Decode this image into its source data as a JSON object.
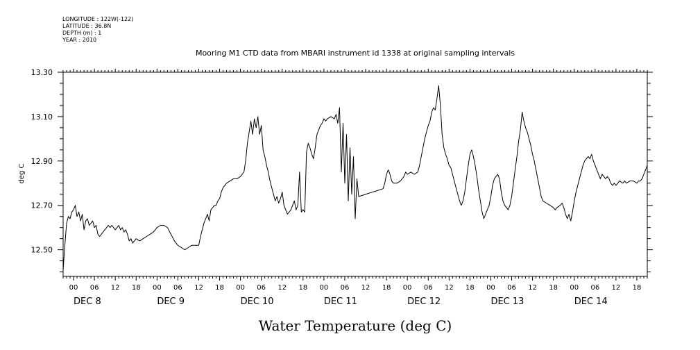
{
  "metadata": {
    "longitude": "LONGITUDE : 122W(-122)",
    "latitude": "LATITUDE : 36.8N",
    "depth": "DEPTH (m) : 1",
    "year": "YEAR : 2010"
  },
  "chart_data": {
    "type": "line",
    "title": "Mooring M1 CTD data from MBARI instrument id 1338 at original sampling intervals",
    "xlabel": "Water Temperature (deg C)",
    "ylabel": "deg C",
    "ylim": [
      12.38,
      13.3
    ],
    "xlim": [
      0,
      168
    ],
    "x_unit": "hours since DEC 7 2010 21:00",
    "yticks": [
      "12.50",
      "12.70",
      "12.90",
      "13.10",
      "13.30"
    ],
    "xtick_labels": [
      "00",
      "06",
      "12",
      "18",
      "00",
      "06",
      "12",
      "18",
      "00",
      "06",
      "12",
      "18",
      "00",
      "06",
      "12",
      "18",
      "00",
      "06",
      "12",
      "18",
      "00",
      "06",
      "12",
      "18",
      "00",
      "06",
      "12",
      "18"
    ],
    "day_labels": [
      "DEC  8",
      "DEC  9",
      "DEC 10",
      "DEC 11",
      "DEC 12",
      "DEC 13",
      "DEC 14"
    ],
    "series": [
      {
        "color": "#000000",
        "points": [
          [
            0.0,
            12.41
          ],
          [
            0.5,
            12.52
          ],
          [
            1.0,
            12.62
          ],
          [
            1.5,
            12.65
          ],
          [
            2.0,
            12.64
          ],
          [
            2.5,
            12.67
          ],
          [
            3.0,
            12.68
          ],
          [
            3.5,
            12.7
          ],
          [
            4.0,
            12.65
          ],
          [
            4.5,
            12.67
          ],
          [
            5.0,
            12.63
          ],
          [
            5.5,
            12.66
          ],
          [
            6.0,
            12.59
          ],
          [
            6.5,
            12.63
          ],
          [
            7.0,
            12.64
          ],
          [
            7.5,
            12.61
          ],
          [
            8.0,
            12.62
          ],
          [
            8.5,
            12.63
          ],
          [
            9.0,
            12.6
          ],
          [
            9.5,
            12.61
          ],
          [
            10.0,
            12.57
          ],
          [
            10.5,
            12.56
          ],
          [
            11.0,
            12.57
          ],
          [
            11.5,
            12.58
          ],
          [
            12.0,
            12.59
          ],
          [
            12.5,
            12.6
          ],
          [
            13.0,
            12.61
          ],
          [
            13.5,
            12.6
          ],
          [
            14.0,
            12.61
          ],
          [
            14.5,
            12.6
          ],
          [
            15.0,
            12.59
          ],
          [
            15.5,
            12.6
          ],
          [
            16.0,
            12.61
          ],
          [
            16.5,
            12.59
          ],
          [
            17.0,
            12.6
          ],
          [
            17.5,
            12.58
          ],
          [
            18.0,
            12.59
          ],
          [
            18.5,
            12.57
          ],
          [
            19.0,
            12.54
          ],
          [
            19.5,
            12.55
          ],
          [
            20.0,
            12.53
          ],
          [
            20.5,
            12.54
          ],
          [
            21.0,
            12.55
          ],
          [
            22.0,
            12.54
          ],
          [
            23.0,
            12.55
          ],
          [
            24.0,
            12.56
          ],
          [
            25.0,
            12.57
          ],
          [
            26.0,
            12.58
          ],
          [
            27.0,
            12.6
          ],
          [
            28.0,
            12.61
          ],
          [
            29.0,
            12.61
          ],
          [
            30.0,
            12.6
          ],
          [
            31.0,
            12.57
          ],
          [
            32.0,
            12.54
          ],
          [
            33.0,
            12.52
          ],
          [
            34.0,
            12.51
          ],
          [
            35.0,
            12.5
          ],
          [
            36.0,
            12.51
          ],
          [
            37.0,
            12.52
          ],
          [
            38.0,
            12.52
          ],
          [
            39.0,
            12.52
          ],
          [
            39.5,
            12.56
          ],
          [
            40.0,
            12.59
          ],
          [
            40.5,
            12.62
          ],
          [
            41.0,
            12.64
          ],
          [
            41.5,
            12.66
          ],
          [
            42.0,
            12.63
          ],
          [
            42.5,
            12.68
          ],
          [
            43.0,
            12.69
          ],
          [
            43.5,
            12.7
          ],
          [
            44.0,
            12.7
          ],
          [
            44.5,
            12.72
          ],
          [
            45.0,
            12.73
          ],
          [
            45.5,
            12.76
          ],
          [
            46.0,
            12.78
          ],
          [
            46.5,
            12.79
          ],
          [
            47.0,
            12.8
          ],
          [
            48.0,
            12.81
          ],
          [
            49.0,
            12.82
          ],
          [
            50.0,
            12.82
          ],
          [
            51.0,
            12.83
          ],
          [
            51.5,
            12.84
          ],
          [
            52.0,
            12.85
          ],
          [
            52.5,
            12.9
          ],
          [
            53.0,
            12.98
          ],
          [
            53.5,
            13.03
          ],
          [
            54.0,
            13.08
          ],
          [
            54.5,
            13.02
          ],
          [
            55.0,
            13.09
          ],
          [
            55.5,
            13.05
          ],
          [
            56.0,
            13.1
          ],
          [
            56.5,
            13.02
          ],
          [
            57.0,
            13.06
          ],
          [
            57.5,
            12.95
          ],
          [
            58.0,
            12.92
          ],
          [
            58.5,
            12.88
          ],
          [
            59.0,
            12.85
          ],
          [
            59.5,
            12.81
          ],
          [
            60.0,
            12.78
          ],
          [
            60.5,
            12.75
          ],
          [
            61.0,
            12.72
          ],
          [
            61.5,
            12.74
          ],
          [
            62.0,
            12.71
          ],
          [
            62.5,
            12.73
          ],
          [
            63.0,
            12.76
          ],
          [
            63.5,
            12.7
          ],
          [
            64.0,
            12.68
          ],
          [
            64.5,
            12.66
          ],
          [
            65.0,
            12.67
          ],
          [
            65.5,
            12.68
          ],
          [
            66.0,
            12.7
          ],
          [
            66.5,
            12.72
          ],
          [
            67.0,
            12.68
          ],
          [
            67.5,
            12.7
          ],
          [
            68.0,
            12.85
          ],
          [
            68.5,
            12.67
          ],
          [
            69.0,
            12.68
          ],
          [
            69.5,
            12.67
          ],
          [
            70.0,
            12.94
          ],
          [
            70.5,
            12.98
          ],
          [
            71.0,
            12.96
          ],
          [
            71.5,
            12.93
          ],
          [
            72.0,
            12.91
          ],
          [
            72.5,
            12.96
          ],
          [
            73.0,
            13.02
          ],
          [
            73.5,
            13.04
          ],
          [
            74.0,
            13.06
          ],
          [
            74.5,
            13.07
          ],
          [
            75.0,
            13.09
          ],
          [
            75.5,
            13.08
          ],
          [
            76.0,
            13.09
          ],
          [
            77.0,
            13.1
          ],
          [
            78.0,
            13.09
          ],
          [
            78.5,
            13.11
          ],
          [
            79.0,
            13.07
          ],
          [
            79.5,
            13.14
          ],
          [
            80.0,
            12.85
          ],
          [
            80.5,
            13.07
          ],
          [
            81.0,
            12.8
          ],
          [
            81.5,
            13.02
          ],
          [
            82.0,
            12.72
          ],
          [
            82.5,
            12.96
          ],
          [
            83.0,
            12.75
          ],
          [
            83.5,
            12.92
          ],
          [
            84.0,
            12.64
          ],
          [
            84.5,
            12.82
          ],
          [
            85.0,
            12.74
          ],
          [
            86.0,
            12.745
          ],
          [
            88.0,
            12.755
          ],
          [
            90.0,
            12.765
          ],
          [
            92.0,
            12.775
          ],
          [
            92.5,
            12.8
          ],
          [
            93.0,
            12.84
          ],
          [
            93.5,
            12.86
          ],
          [
            94.0,
            12.84
          ],
          [
            94.5,
            12.81
          ],
          [
            95.0,
            12.8
          ],
          [
            96.0,
            12.8
          ],
          [
            97.0,
            12.81
          ],
          [
            98.0,
            12.83
          ],
          [
            98.5,
            12.85
          ],
          [
            99.0,
            12.84
          ],
          [
            100.0,
            12.85
          ],
          [
            101.0,
            12.84
          ],
          [
            102.0,
            12.85
          ],
          [
            102.5,
            12.88
          ],
          [
            103.0,
            12.92
          ],
          [
            103.5,
            12.96
          ],
          [
            104.0,
            13.0
          ],
          [
            104.5,
            13.03
          ],
          [
            105.0,
            13.06
          ],
          [
            105.5,
            13.08
          ],
          [
            106.0,
            13.12
          ],
          [
            106.5,
            13.14
          ],
          [
            107.0,
            13.13
          ],
          [
            107.5,
            13.18
          ],
          [
            108.0,
            13.24
          ],
          [
            108.5,
            13.15
          ],
          [
            109.0,
            13.02
          ],
          [
            109.5,
            12.96
          ],
          [
            110.0,
            12.93
          ],
          [
            110.5,
            12.91
          ],
          [
            111.0,
            12.88
          ],
          [
            111.5,
            12.87
          ],
          [
            112.0,
            12.84
          ],
          [
            112.5,
            12.81
          ],
          [
            113.0,
            12.78
          ],
          [
            113.5,
            12.75
          ],
          [
            114.0,
            12.72
          ],
          [
            114.5,
            12.7
          ],
          [
            115.0,
            12.72
          ],
          [
            115.5,
            12.76
          ],
          [
            116.0,
            12.82
          ],
          [
            116.5,
            12.88
          ],
          [
            117.0,
            12.93
          ],
          [
            117.5,
            12.95
          ],
          [
            118.0,
            12.92
          ],
          [
            118.5,
            12.88
          ],
          [
            119.0,
            12.83
          ],
          [
            119.5,
            12.77
          ],
          [
            120.0,
            12.72
          ],
          [
            120.5,
            12.67
          ],
          [
            121.0,
            12.64
          ],
          [
            121.5,
            12.66
          ],
          [
            122.0,
            12.68
          ],
          [
            122.5,
            12.7
          ],
          [
            123.0,
            12.74
          ],
          [
            123.5,
            12.79
          ],
          [
            124.0,
            12.82
          ],
          [
            124.5,
            12.83
          ],
          [
            125.0,
            12.84
          ],
          [
            125.5,
            12.82
          ],
          [
            126.0,
            12.76
          ],
          [
            126.5,
            12.72
          ],
          [
            127.0,
            12.7
          ],
          [
            127.5,
            12.69
          ],
          [
            128.0,
            12.68
          ],
          [
            128.5,
            12.7
          ],
          [
            129.0,
            12.74
          ],
          [
            129.5,
            12.8
          ],
          [
            130.0,
            12.86
          ],
          [
            130.5,
            12.92
          ],
          [
            131.0,
            12.99
          ],
          [
            131.5,
            13.04
          ],
          [
            132.0,
            13.12
          ],
          [
            132.5,
            13.08
          ],
          [
            133.0,
            13.05
          ],
          [
            133.5,
            13.03
          ],
          [
            134.0,
            13.0
          ],
          [
            134.5,
            12.97
          ],
          [
            135.0,
            12.93
          ],
          [
            135.5,
            12.9
          ],
          [
            136.0,
            12.86
          ],
          [
            136.5,
            12.82
          ],
          [
            137.0,
            12.78
          ],
          [
            137.5,
            12.74
          ],
          [
            138.0,
            12.72
          ],
          [
            139.0,
            12.71
          ],
          [
            140.0,
            12.7
          ],
          [
            141.0,
            12.69
          ],
          [
            141.5,
            12.68
          ],
          [
            142.0,
            12.69
          ],
          [
            143.0,
            12.7
          ],
          [
            143.5,
            12.71
          ],
          [
            144.0,
            12.69
          ],
          [
            144.5,
            12.66
          ],
          [
            145.0,
            12.64
          ],
          [
            145.5,
            12.66
          ],
          [
            146.0,
            12.63
          ],
          [
            146.5,
            12.67
          ],
          [
            147.0,
            12.72
          ],
          [
            147.5,
            12.76
          ],
          [
            148.0,
            12.79
          ],
          [
            148.5,
            12.82
          ],
          [
            149.0,
            12.85
          ],
          [
            149.5,
            12.88
          ],
          [
            150.0,
            12.9
          ],
          [
            150.5,
            12.91
          ],
          [
            151.0,
            12.92
          ],
          [
            151.5,
            12.91
          ],
          [
            152.0,
            12.93
          ],
          [
            152.5,
            12.9
          ],
          [
            153.0,
            12.88
          ],
          [
            153.5,
            12.86
          ],
          [
            154.0,
            12.84
          ],
          [
            154.5,
            12.82
          ],
          [
            155.0,
            12.84
          ],
          [
            155.5,
            12.83
          ],
          [
            156.0,
            12.82
          ],
          [
            156.5,
            12.83
          ],
          [
            157.0,
            12.82
          ],
          [
            157.5,
            12.8
          ],
          [
            158.0,
            12.79
          ],
          [
            158.5,
            12.8
          ],
          [
            159.0,
            12.79
          ],
          [
            159.5,
            12.8
          ],
          [
            160.0,
            12.81
          ],
          [
            161.0,
            12.8
          ],
          [
            161.5,
            12.81
          ],
          [
            162.0,
            12.8
          ],
          [
            163.0,
            12.81
          ],
          [
            164.0,
            12.81
          ],
          [
            165.0,
            12.8
          ],
          [
            165.5,
            12.81
          ],
          [
            166.0,
            12.81
          ],
          [
            166.5,
            12.82
          ],
          [
            167.0,
            12.84
          ],
          [
            167.5,
            12.86
          ],
          [
            168.0,
            12.88
          ]
        ]
      }
    ]
  }
}
